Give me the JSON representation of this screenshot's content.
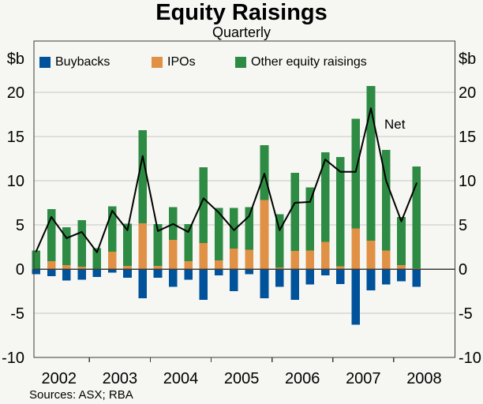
{
  "header": {
    "title": "Equity Raisings",
    "subtitle": "Quarterly"
  },
  "axis": {
    "unit_left": "$b",
    "unit_right": "$b",
    "ytick_labels": [
      "20",
      "15",
      "10",
      "5",
      "0",
      "-5",
      "-10"
    ],
    "ytick_values": [
      20,
      15,
      10,
      5,
      0,
      -5,
      -10
    ],
    "years": [
      "2002",
      "2003",
      "2004",
      "2005",
      "2006",
      "2007",
      "2008"
    ]
  },
  "legend": {
    "items": [
      {
        "label": "Buybacks",
        "color": "#00529B"
      },
      {
        "label": "IPOs",
        "color": "#E09145"
      },
      {
        "label": "Other equity raisings",
        "color": "#2E8B44"
      }
    ]
  },
  "annotations": {
    "net_label": "Net"
  },
  "footer": {
    "sources": "Sources: ASX; RBA"
  },
  "chart_data": {
    "type": "bar",
    "title": "Equity Raisings",
    "subtitle": "Quarterly",
    "unit": "$b",
    "stacked": true,
    "grid": true,
    "legend_position": "top-left-inside",
    "ylim": [
      -10,
      25.8
    ],
    "yticks": [
      -10,
      -5,
      0,
      5,
      10,
      15,
      20
    ],
    "x": [
      "2002 Q1",
      "2002 Q2",
      "2002 Q3",
      "2002 Q4",
      "2003 Q1",
      "2003 Q2",
      "2003 Q3",
      "2003 Q4",
      "2004 Q1",
      "2004 Q2",
      "2004 Q3",
      "2004 Q4",
      "2005 Q1",
      "2005 Q2",
      "2005 Q3",
      "2005 Q4",
      "2006 Q1",
      "2006 Q2",
      "2006 Q3",
      "2006 Q4",
      "2007 Q1",
      "2007 Q2",
      "2007 Q3",
      "2007 Q4",
      "2008 Q1",
      "2008 Q2"
    ],
    "series": [
      {
        "name": "Buybacks",
        "type": "bar",
        "color": "#00529B",
        "values": [
          -0.6,
          -0.8,
          -1.3,
          -1.2,
          -0.9,
          -0.4,
          -1.0,
          -3.3,
          -1.0,
          -2.0,
          -1.2,
          -3.5,
          -0.7,
          -2.5,
          -0.6,
          -3.3,
          -2.0,
          -3.5,
          -1.75,
          -0.7,
          -1.7,
          -6.3,
          -2.4,
          -1.75,
          -1.4,
          -2.0
        ]
      },
      {
        "name": "IPOs",
        "type": "bar",
        "color": "#E09145",
        "values": [
          0,
          0.9,
          0.45,
          0.25,
          0,
          1.95,
          0.35,
          5.2,
          0.35,
          3.3,
          0.9,
          2.95,
          1.0,
          2.3,
          2.2,
          7.8,
          0.2,
          2.05,
          2.1,
          3.1,
          0.3,
          4.6,
          3.2,
          2.1,
          0.45,
          0.1
        ]
      },
      {
        "name": "Other equity raisings",
        "type": "bar",
        "color": "#2E8B44",
        "values": [
          2.1,
          5.9,
          4.3,
          5.3,
          2.35,
          5.15,
          4.8,
          10.5,
          4.75,
          3.7,
          4.2,
          8.55,
          5.9,
          4.6,
          4.8,
          6.2,
          6.0,
          8.85,
          7.15,
          10.1,
          12.4,
          12.4,
          17.5,
          11.4,
          5.45,
          11.5
        ]
      },
      {
        "name": "Net",
        "type": "line",
        "color": "#000000",
        "values": [
          2.0,
          5.9,
          3.5,
          4.2,
          1.9,
          6.6,
          4.4,
          12.8,
          4.3,
          5.1,
          4.2,
          8.0,
          6.4,
          4.4,
          6.0,
          10.8,
          4.4,
          7.5,
          7.6,
          12.4,
          11.0,
          11.0,
          18.2,
          10.0,
          5.4,
          9.7
        ]
      }
    ]
  }
}
